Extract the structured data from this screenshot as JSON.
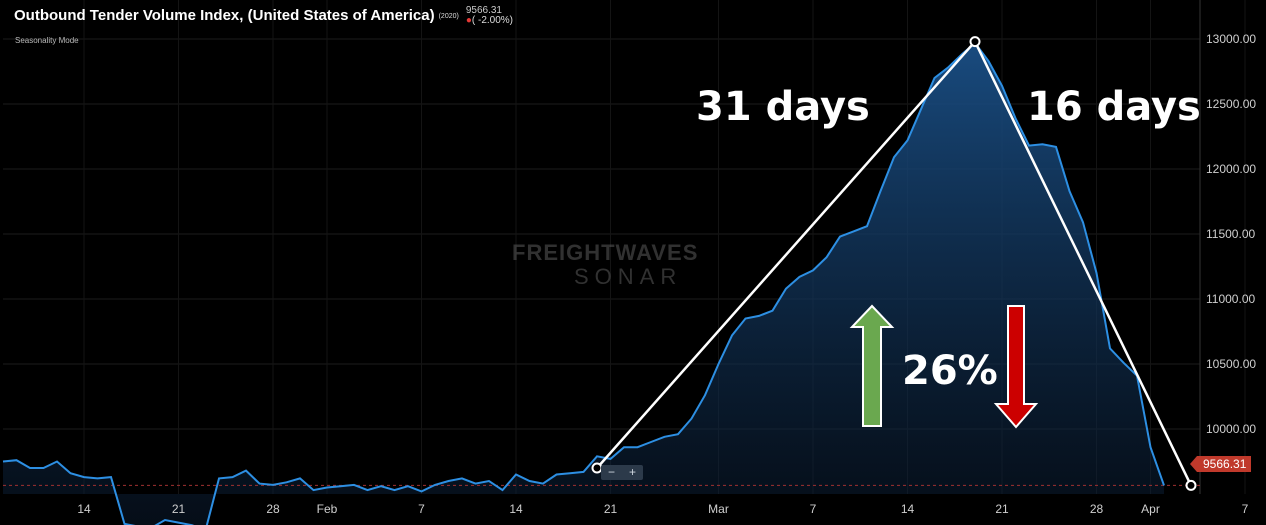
{
  "header": {
    "title": "Outbound Tender Volume Index, (United States of America)",
    "year_tag": "(2020)",
    "last_value": "9566.31",
    "change": "( -2.00%)",
    "mode": "Seasonality Mode"
  },
  "watermark": {
    "line1": "FREIGHTWAVES",
    "line2": "SONAR"
  },
  "annotations": {
    "rise_days": "31 days",
    "fall_days": "16 days",
    "percent": "26%"
  },
  "price_tag": "9566.31",
  "zoom": {
    "minus": "−",
    "plus": "+"
  },
  "colors": {
    "line": "#2d8fe3",
    "fill_top": "#1a4f86",
    "up_arrow": "#6aa84f",
    "down_arrow": "#cc0000",
    "price": "#c0392b"
  },
  "chart_data": {
    "type": "area",
    "ylim": [
      9500,
      13300
    ],
    "y_ticks": [
      "10000.00",
      "10500.00",
      "11000.00",
      "11500.00",
      "12000.00",
      "12500.00",
      "13000.00"
    ],
    "x_ticks": [
      "14",
      "21",
      "28",
      "Feb",
      "7",
      "14",
      "21",
      "Mar",
      "7",
      "14",
      "21",
      "28",
      "Apr",
      "7"
    ],
    "y_tick_values": [
      10000,
      10500,
      11000,
      11500,
      12000,
      12500,
      13000
    ],
    "x_tick_pos": [
      6,
      13,
      20,
      24,
      31,
      38,
      45,
      53,
      60,
      67,
      74,
      81,
      85,
      92
    ],
    "series": [
      {
        "values": [
          9750,
          9760,
          9700,
          9700,
          9750,
          9660,
          9630,
          9620,
          9630,
          9270,
          9250,
          9240,
          9300,
          9280,
          9260,
          9220,
          9620,
          9630,
          9680,
          9580,
          9570,
          9590,
          9620,
          9530,
          9550,
          9560,
          9570,
          9530,
          9560,
          9530,
          9560,
          9520,
          9570,
          9600,
          9620,
          9580,
          9600,
          9530,
          9650,
          9600,
          9580,
          9650,
          9660,
          9670,
          9790,
          9770,
          9860,
          9860,
          9900,
          9940,
          9960,
          10080,
          10260,
          10500,
          10720,
          10850,
          10870,
          10910,
          11080,
          11170,
          11220,
          11320,
          11480,
          11520,
          11560,
          11830,
          12090,
          12220,
          12460,
          12700,
          12780,
          12880,
          12970,
          12830,
          12640,
          12390,
          12180,
          12190,
          12170,
          11830,
          11590,
          11200,
          10620,
          10510,
          10410,
          9860,
          9566
        ]
      }
    ],
    "markers": [
      {
        "x": 44,
        "y": 9700
      },
      {
        "x": 72,
        "y": 12980
      },
      {
        "x": 88,
        "y": 9566
      }
    ]
  }
}
